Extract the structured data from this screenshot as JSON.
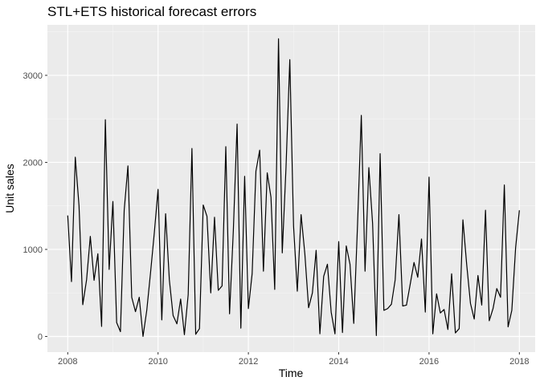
{
  "chart_data": {
    "type": "line",
    "title": "STL+ETS historical forecast errors",
    "xlabel": "Time",
    "ylabel": "Unit sales",
    "xlim": [
      2007.55,
      2018.35
    ],
    "ylim": [
      -180,
      3580
    ],
    "x_ticks": [
      2008,
      2010,
      2012,
      2014,
      2016,
      2018
    ],
    "x_tick_labels": [
      "2008",
      "2010",
      "2012",
      "2014",
      "2016",
      "2018"
    ],
    "y_ticks": [
      0,
      1000,
      2000,
      3000
    ],
    "y_tick_labels": [
      "0",
      "1000",
      "2000",
      "3000"
    ],
    "grid": true,
    "legend": "none",
    "colors": {
      "panel": "#ebebeb",
      "grid_major": "#ffffff",
      "line": "#000000"
    },
    "series": [
      {
        "x": [
          2008.0,
          2008.083,
          2008.167,
          2008.25,
          2008.333,
          2008.417,
          2008.5,
          2008.583,
          2008.667,
          2008.75,
          2008.833,
          2008.917,
          2009.0,
          2009.083,
          2009.167,
          2009.25,
          2009.333,
          2009.417,
          2009.5,
          2009.583,
          2009.667,
          2009.75,
          2009.833,
          2009.917,
          2010.0,
          2010.083,
          2010.167,
          2010.25,
          2010.333,
          2010.417,
          2010.5,
          2010.583,
          2010.667,
          2010.75,
          2010.833,
          2010.917,
          2011.0,
          2011.083,
          2011.167,
          2011.25,
          2011.333,
          2011.417,
          2011.5,
          2011.583,
          2011.667,
          2011.75,
          2011.833,
          2011.917,
          2012.0,
          2012.083,
          2012.167,
          2012.25,
          2012.333,
          2012.417,
          2012.5,
          2012.583,
          2012.667,
          2012.75,
          2012.833,
          2012.917,
          2013.0,
          2013.083,
          2013.167,
          2013.25,
          2013.333,
          2013.417,
          2013.5,
          2013.583,
          2013.667,
          2013.75,
          2013.833,
          2013.917,
          2014.0,
          2014.083,
          2014.167,
          2014.25,
          2014.333,
          2014.417,
          2014.5,
          2014.583,
          2014.667,
          2014.75,
          2014.833,
          2014.917,
          2015.0,
          2015.083,
          2015.167,
          2015.25,
          2015.333,
          2015.417,
          2015.5,
          2015.583,
          2015.667,
          2015.75,
          2015.833,
          2015.917,
          2016.0,
          2016.083,
          2016.167,
          2016.25,
          2016.333,
          2016.417,
          2016.5,
          2016.583,
          2016.667,
          2016.75,
          2016.833,
          2016.917,
          2017.0,
          2017.083,
          2017.167,
          2017.25,
          2017.333,
          2017.417,
          2017.5,
          2017.583,
          2017.667,
          2017.75,
          2017.833,
          2017.917,
          2018.0
        ],
        "y": [
          1390,
          630,
          2060,
          1500,
          365,
          650,
          1150,
          645,
          950,
          115,
          2490,
          770,
          1550,
          160,
          55,
          1450,
          1960,
          450,
          285,
          450,
          0,
          300,
          730,
          1190,
          1690,
          190,
          1410,
          650,
          240,
          145,
          430,
          20,
          480,
          2160,
          25,
          90,
          1510,
          1380,
          500,
          1370,
          530,
          580,
          2180,
          260,
          1220,
          2440,
          95,
          1840,
          320,
          720,
          1900,
          2140,
          750,
          1880,
          1600,
          540,
          3420,
          960,
          1940,
          3180,
          1270,
          520,
          1400,
          950,
          330,
          500,
          990,
          30,
          690,
          830,
          280,
          30,
          1090,
          45,
          1040,
          830,
          150,
          1290,
          2540,
          750,
          1940,
          1300,
          10,
          2100,
          300,
          320,
          370,
          650,
          1400,
          350,
          360,
          600,
          850,
          680,
          1120,
          280,
          1830,
          30,
          490,
          270,
          310,
          80,
          720,
          40,
          90,
          1340,
          830,
          380,
          200,
          700,
          360,
          1450,
          180,
          320,
          550,
          450,
          1740,
          110,
          300,
          1020,
          1450
        ]
      }
    ]
  }
}
